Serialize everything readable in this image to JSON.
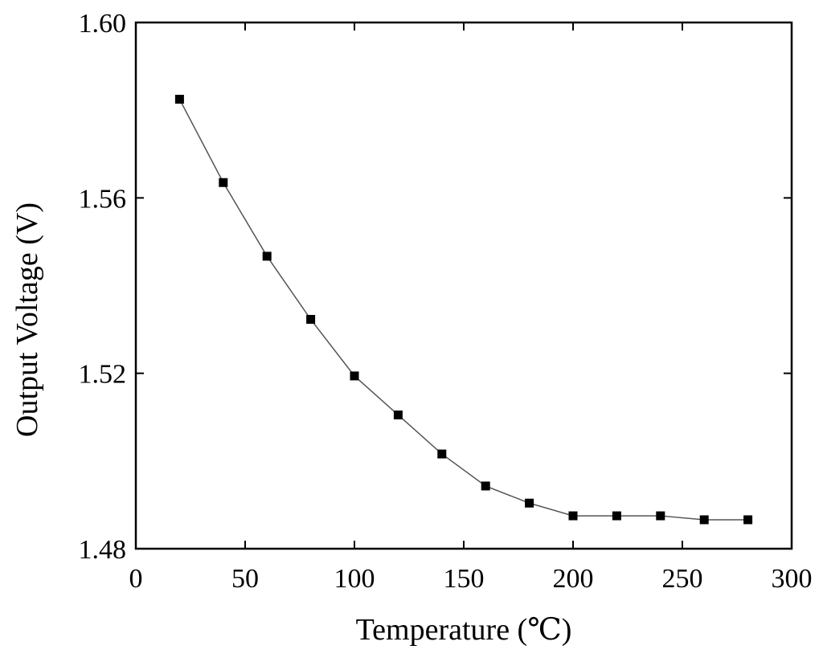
{
  "chart_data": {
    "type": "line",
    "title": "",
    "xlabel": "Temperature (℃)",
    "ylabel": "Output Voltage (V)",
    "xlim": [
      0,
      300
    ],
    "ylim": [
      1.48,
      1.6
    ],
    "x_ticks": [
      0,
      50,
      100,
      150,
      200,
      250,
      300
    ],
    "x_tick_labels": [
      "0",
      "50",
      "100",
      "150",
      "200",
      "250",
      "300"
    ],
    "y_ticks": [
      1.48,
      1.52,
      1.56,
      1.6
    ],
    "y_tick_labels": [
      "1.48",
      "1.52",
      "1.56",
      "1.60"
    ],
    "grid": false,
    "legend": "none",
    "marker": "square",
    "line_color": "#555555",
    "marker_color": "#000000",
    "series": [
      {
        "x": [
          20,
          40,
          60,
          80,
          100,
          120,
          140,
          160,
          180,
          200,
          220,
          240,
          260,
          280
        ],
        "y": [
          1.5825,
          1.5635,
          1.5467,
          1.5323,
          1.5194,
          1.5105,
          1.5016,
          1.4943,
          1.4904,
          1.4875,
          1.4875,
          1.4875,
          1.4866,
          1.4866
        ]
      }
    ]
  }
}
